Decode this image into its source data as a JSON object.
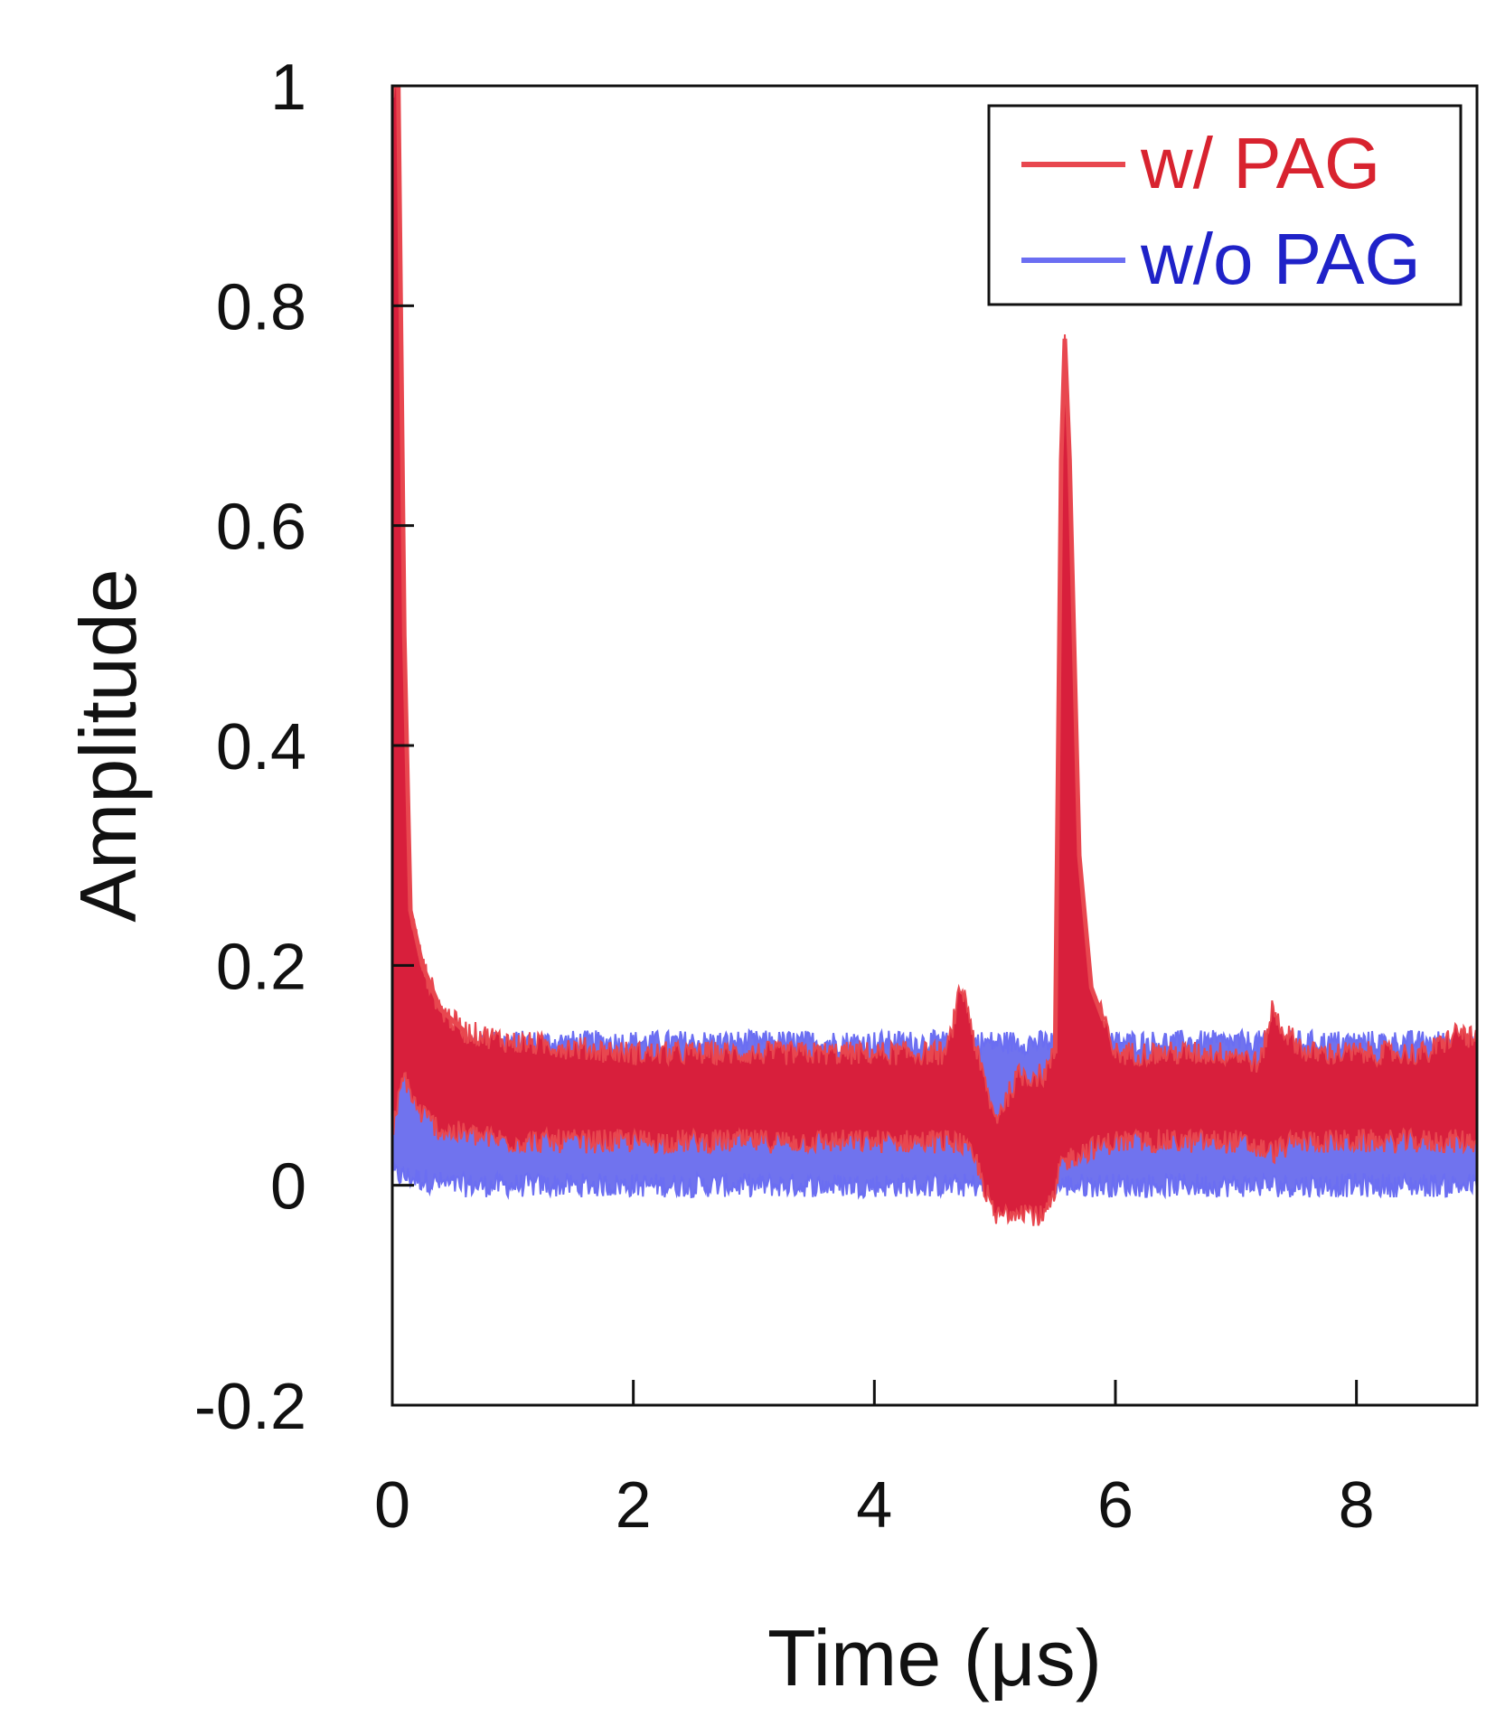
{
  "chart_data": {
    "type": "line",
    "title": "",
    "xlabel": "Time (μs)",
    "ylabel": "Amplitude",
    "xlim": [
      0,
      9
    ],
    "ylim": [
      -0.2,
      1
    ],
    "x_ticks": [
      0,
      2,
      4,
      6,
      8
    ],
    "x_tick_labels": [
      "0",
      "2",
      "4",
      "6",
      "8"
    ],
    "y_ticks": [
      -0.2,
      0,
      0.2,
      0.4,
      0.6,
      0.8,
      1
    ],
    "y_tick_labels": [
      "-0.2",
      "0",
      "0.2",
      "0.4",
      "0.6",
      "0.8",
      "1"
    ],
    "grid": false,
    "legend_position": "top-right",
    "series": [
      {
        "name": "w/ PAG",
        "color": "#e8474f",
        "fill_color": "#d81f3c",
        "upper": [
          [
            0,
            1.0
          ],
          [
            0.05,
            1.0
          ],
          [
            0.1,
            0.5
          ],
          [
            0.15,
            0.25
          ],
          [
            0.25,
            0.2
          ],
          [
            0.4,
            0.16
          ],
          [
            0.6,
            0.14
          ],
          [
            1.0,
            0.13
          ],
          [
            2.0,
            0.12
          ],
          [
            3.0,
            0.12
          ],
          [
            4.0,
            0.12
          ],
          [
            4.6,
            0.12
          ],
          [
            4.72,
            0.18
          ],
          [
            4.78,
            0.16
          ],
          [
            4.85,
            0.12
          ],
          [
            5.0,
            0.06
          ],
          [
            5.2,
            0.1
          ],
          [
            5.4,
            0.1
          ],
          [
            5.5,
            0.12
          ],
          [
            5.55,
            0.66
          ],
          [
            5.58,
            0.77
          ],
          [
            5.62,
            0.66
          ],
          [
            5.7,
            0.3
          ],
          [
            5.8,
            0.18
          ],
          [
            5.9,
            0.15
          ],
          [
            6.0,
            0.12
          ],
          [
            7.0,
            0.12
          ],
          [
            7.2,
            0.11
          ],
          [
            7.3,
            0.16
          ],
          [
            7.4,
            0.14
          ],
          [
            7.6,
            0.12
          ],
          [
            8.0,
            0.12
          ],
          [
            8.6,
            0.12
          ],
          [
            8.85,
            0.14
          ],
          [
            9.0,
            0.13
          ]
        ],
        "lower": [
          [
            0,
            0.05
          ],
          [
            0.1,
            0.1
          ],
          [
            0.2,
            0.07
          ],
          [
            0.4,
            0.05
          ],
          [
            1.0,
            0.04
          ],
          [
            2.0,
            0.04
          ],
          [
            3.0,
            0.04
          ],
          [
            4.0,
            0.04
          ],
          [
            4.7,
            0.04
          ],
          [
            4.85,
            0.02
          ],
          [
            5.0,
            -0.03
          ],
          [
            5.2,
            -0.02
          ],
          [
            5.4,
            -0.03
          ],
          [
            5.5,
            -0.01
          ],
          [
            5.55,
            0.02
          ],
          [
            5.7,
            0.03
          ],
          [
            6.0,
            0.04
          ],
          [
            7.0,
            0.04
          ],
          [
            7.3,
            0.03
          ],
          [
            7.5,
            0.04
          ],
          [
            8.0,
            0.04
          ],
          [
            9.0,
            0.04
          ]
        ]
      },
      {
        "name": "w/o PAG",
        "color": "#6b6ef2",
        "fill_color": "#7073ee",
        "upper": [
          [
            0,
            0.11
          ],
          [
            0.5,
            0.13
          ],
          [
            1.0,
            0.13
          ],
          [
            2.0,
            0.13
          ],
          [
            3.0,
            0.13
          ],
          [
            4.0,
            0.13
          ],
          [
            4.8,
            0.13
          ],
          [
            5.0,
            0.13
          ],
          [
            6.0,
            0.13
          ],
          [
            7.0,
            0.13
          ],
          [
            8.0,
            0.13
          ],
          [
            9.0,
            0.13
          ]
        ],
        "lower": [
          [
            0,
            0.01
          ],
          [
            0.5,
            0.0
          ],
          [
            1.0,
            0.0
          ],
          [
            2.0,
            0.0
          ],
          [
            3.0,
            0.0
          ],
          [
            4.0,
            0.0
          ],
          [
            5.0,
            0.0
          ],
          [
            6.0,
            0.0
          ],
          [
            7.0,
            0.0
          ],
          [
            8.0,
            0.0
          ],
          [
            9.0,
            0.0
          ]
        ]
      }
    ]
  }
}
